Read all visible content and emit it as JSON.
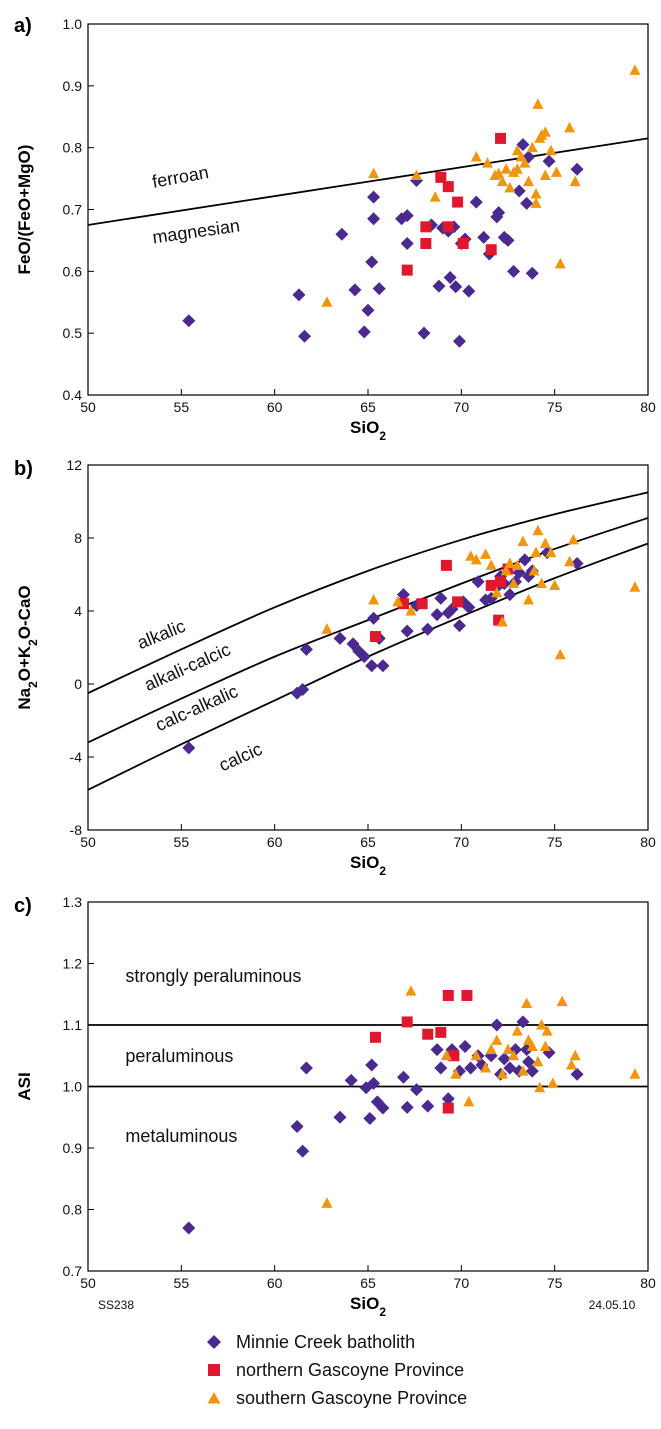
{
  "colors": {
    "minnie": "#4b2a8f",
    "northern": "#e0182d",
    "southern": "#f0960e",
    "axis": "#000000"
  },
  "legend": [
    {
      "key": "minnie",
      "label": "Minnie Creek batholith",
      "shape": "diamond"
    },
    {
      "key": "northern",
      "label": "northern Gascoyne Province",
      "shape": "square"
    },
    {
      "key": "southern",
      "label": "southern Gascoyne Province",
      "shape": "triangle"
    }
  ],
  "footer": {
    "left": "SS238",
    "right": "24.05.10"
  },
  "chart_data": [
    {
      "type": "scatter",
      "panel": "a)",
      "xlabel": "SiO2",
      "ylabel": "FeO/(FeO+MgO)",
      "xlim": [
        50,
        80
      ],
      "ylim": [
        0.4,
        1.0
      ],
      "xticks": [
        50,
        55,
        60,
        65,
        70,
        75,
        80
      ],
      "yticks": [
        0.4,
        0.5,
        0.6,
        0.7,
        0.8,
        0.9,
        1.0
      ],
      "tick_decimals": 1,
      "boundaries": [
        {
          "name": "ferroan-magnesian",
          "x": [
            50,
            80
          ],
          "y": [
            0.675,
            0.815
          ]
        }
      ],
      "field_labels": [
        {
          "text": "ferroan",
          "x": 53.5,
          "y": 0.735,
          "rotate": -10
        },
        {
          "text": "magnesian",
          "x": 53.5,
          "y": 0.645,
          "rotate": -8
        }
      ],
      "series": [
        {
          "name": "Minnie Creek batholith",
          "key": "minnie",
          "x": [
            55.4,
            61.3,
            61.6,
            63.6,
            64.3,
            64.8,
            65,
            65.2,
            65.3,
            65.3,
            65.6,
            66.8,
            67.1,
            67.1,
            67.6,
            68,
            68.4,
            68.8,
            69,
            69.3,
            69.4,
            69.6,
            69.7,
            69.9,
            70,
            70.2,
            70.4,
            70.8,
            71.2,
            71.5,
            71.9,
            72,
            72.3,
            72.5,
            72.8,
            73.1,
            73.3,
            73.5,
            73.6,
            73.8,
            74.7,
            76.2
          ],
          "y": [
            0.52,
            0.562,
            0.495,
            0.66,
            0.57,
            0.502,
            0.537,
            0.615,
            0.685,
            0.72,
            0.572,
            0.685,
            0.645,
            0.69,
            0.747,
            0.5,
            0.675,
            0.576,
            0.67,
            0.665,
            0.59,
            0.672,
            0.575,
            0.487,
            0.645,
            0.652,
            0.568,
            0.712,
            0.655,
            0.628,
            0.688,
            0.695,
            0.655,
            0.65,
            0.6,
            0.73,
            0.805,
            0.71,
            0.785,
            0.597,
            0.778,
            0.765
          ]
        },
        {
          "name": "northern Gascoyne Province",
          "key": "northern",
          "x": [
            67.1,
            68.1,
            68.1,
            68.9,
            69.3,
            69.3,
            69.8,
            70.1,
            71.6,
            72.1
          ],
          "y": [
            0.602,
            0.645,
            0.672,
            0.752,
            0.672,
            0.737,
            0.712,
            0.645,
            0.635,
            0.815
          ]
        },
        {
          "name": "southern Gascoyne Province",
          "key": "southern",
          "x": [
            62.8,
            65.3,
            67.6,
            68.6,
            70.8,
            71.4,
            71.8,
            72,
            72.2,
            72.4,
            72.6,
            72.8,
            73,
            73,
            73.2,
            73.4,
            73.6,
            73.8,
            74,
            74,
            74.1,
            74.2,
            74.3,
            74.5,
            74.5,
            74.8,
            75.1,
            75.3,
            75.8,
            76.1,
            79.3
          ],
          "y": [
            0.55,
            0.758,
            0.755,
            0.72,
            0.785,
            0.775,
            0.755,
            0.758,
            0.745,
            0.765,
            0.735,
            0.76,
            0.765,
            0.795,
            0.785,
            0.775,
            0.745,
            0.8,
            0.71,
            0.725,
            0.87,
            0.815,
            0.82,
            0.755,
            0.825,
            0.795,
            0.76,
            0.612,
            0.832,
            0.745,
            0.925
          ]
        }
      ]
    },
    {
      "type": "scatter",
      "panel": "b)",
      "xlabel": "SiO2",
      "ylabel": "Na2O+K2O-CaO",
      "xlim": [
        50,
        80
      ],
      "ylim": [
        -8,
        12
      ],
      "xticks": [
        50,
        55,
        60,
        65,
        70,
        75,
        80
      ],
      "yticks": [
        -8,
        -4,
        0,
        4,
        8,
        12
      ],
      "tick_decimals": 0,
      "boundaries": [
        {
          "name": "alkalic/alkali-calcic",
          "x": [
            50,
            55,
            60,
            65,
            70,
            75,
            80
          ],
          "y": [
            -0.5,
            1.9,
            4.2,
            6.2,
            7.9,
            9.3,
            10.5
          ]
        },
        {
          "name": "alkali-calcic/calc-alkalic",
          "x": [
            50,
            55,
            60,
            65,
            70,
            75,
            80
          ],
          "y": [
            -3.2,
            -0.8,
            1.5,
            3.5,
            5.5,
            7.4,
            9.1
          ]
        },
        {
          "name": "calc-alkalic/calcic",
          "x": [
            50,
            55,
            60,
            65,
            70,
            75,
            80
          ],
          "y": [
            -5.8,
            -3.3,
            -0.9,
            1.5,
            3.7,
            5.8,
            7.7
          ]
        }
      ],
      "field_labels": [
        {
          "text": "alkalic",
          "x": 52.8,
          "y": 1.9,
          "rotate": -22
        },
        {
          "text": "alkali-calcic",
          "x": 53.2,
          "y": -0.4,
          "rotate": -24
        },
        {
          "text": "calc-alkalic",
          "x": 53.8,
          "y": -2.6,
          "rotate": -24
        },
        {
          "text": "calcic",
          "x": 57.2,
          "y": -4.8,
          "rotate": -24
        }
      ],
      "series": [
        {
          "name": "Minnie Creek batholith",
          "key": "minnie",
          "x": [
            55.4,
            61.2,
            61.5,
            61.7,
            63.5,
            64.2,
            64.5,
            64.8,
            65.2,
            65.3,
            65.6,
            65.8,
            66.9,
            67.1,
            67.6,
            68.2,
            68.7,
            68.9,
            69.3,
            69.5,
            69.9,
            70.1,
            70.4,
            70.9,
            71.3,
            71.6,
            71.9,
            72.1,
            72.3,
            72.6,
            72.9,
            73.1,
            73.4,
            73.6,
            73.8,
            74.6,
            76.2
          ],
          "y": [
            -3.5,
            -0.5,
            -0.3,
            1.9,
            2.5,
            2.2,
            1.8,
            1.5,
            1,
            3.6,
            2.5,
            1,
            4.9,
            2.9,
            4.3,
            3,
            3.8,
            4.7,
            3.9,
            4.1,
            3.2,
            4.5,
            4.2,
            5.6,
            4.6,
            4.7,
            5.3,
            5.9,
            5.5,
            4.9,
            5.6,
            6.1,
            6.8,
            5.9,
            6.2,
            7.2,
            6.6
          ]
        },
        {
          "name": "northern Gascoyne Province",
          "key": "northern",
          "x": [
            65.4,
            66.9,
            67.9,
            69.2,
            69.8,
            71.6,
            72,
            72.1,
            72.5
          ],
          "y": [
            2.6,
            4.4,
            4.4,
            6.5,
            4.5,
            5.4,
            3.5,
            5.6,
            6.3
          ]
        },
        {
          "name": "southern Gascoyne Province",
          "key": "southern",
          "x": [
            62.8,
            65.3,
            66.6,
            67.3,
            70.5,
            70.8,
            71.3,
            71.6,
            71.9,
            72.2,
            72.4,
            72.6,
            72.8,
            73,
            73.3,
            73.6,
            73.9,
            74,
            74.1,
            74.3,
            74.5,
            74.8,
            75,
            75.3,
            75.8,
            76,
            79.3
          ],
          "y": [
            3,
            4.6,
            4.5,
            4,
            7,
            6.8,
            7.1,
            6.5,
            5,
            3.4,
            6.2,
            6.6,
            5.5,
            6.5,
            7.8,
            4.6,
            6.2,
            7.2,
            8.4,
            5.5,
            7.7,
            7.2,
            5.4,
            1.6,
            6.7,
            7.9,
            5.3
          ]
        }
      ]
    },
    {
      "type": "scatter",
      "panel": "c)",
      "xlabel": "SiO2",
      "ylabel": "ASI",
      "xlim": [
        50,
        80
      ],
      "ylim": [
        0.7,
        1.3
      ],
      "xticks": [
        50,
        55,
        60,
        65,
        70,
        75,
        80
      ],
      "yticks": [
        0.7,
        0.8,
        0.9,
        1.0,
        1.1,
        1.2,
        1.3
      ],
      "tick_decimals": 1,
      "boundaries": [
        {
          "name": "ASI 1.1",
          "x": [
            50,
            80
          ],
          "y": [
            1.1,
            1.1
          ]
        },
        {
          "name": "ASI 1.0",
          "x": [
            50,
            80
          ],
          "y": [
            1.0,
            1.0
          ]
        }
      ],
      "field_labels": [
        {
          "text": "strongly peraluminous",
          "x": 52,
          "y": 1.17,
          "rotate": 0
        },
        {
          "text": "peraluminous",
          "x": 52,
          "y": 1.04,
          "rotate": 0
        },
        {
          "text": "metaluminous",
          "x": 52,
          "y": 0.91,
          "rotate": 0
        }
      ],
      "series": [
        {
          "name": "Minnie Creek batholith",
          "key": "minnie",
          "x": [
            55.4,
            61.2,
            61.5,
            61.7,
            63.5,
            64.1,
            64.9,
            65.1,
            65.2,
            65.3,
            65.5,
            65.8,
            66.9,
            67.1,
            67.6,
            68.2,
            68.7,
            68.9,
            69.3,
            69.5,
            69.9,
            70.2,
            70.5,
            70.9,
            71.1,
            71.6,
            71.9,
            72.1,
            72.3,
            72.6,
            72.9,
            73.1,
            73.3,
            73.5,
            73.6,
            73.8,
            74.7,
            76.2
          ],
          "y": [
            0.77,
            0.935,
            0.895,
            1.03,
            0.95,
            1.01,
            0.998,
            0.948,
            1.035,
            1.005,
            0.975,
            0.965,
            1.015,
            0.966,
            0.995,
            0.968,
            1.06,
            1.03,
            0.98,
            1.06,
            1.025,
            1.065,
            1.03,
            1.05,
            1.035,
            1.05,
            1.1,
            1.02,
            1.045,
            1.03,
            1.06,
            1.025,
            1.105,
            1.06,
            1.04,
            1.025,
            1.055,
            1.02
          ]
        },
        {
          "name": "northern Gascoyne Province",
          "key": "northern",
          "x": [
            65.4,
            67.1,
            68.2,
            68.9,
            69.3,
            69.3,
            69.6,
            70.3
          ],
          "y": [
            1.08,
            1.105,
            1.085,
            1.088,
            1.148,
            0.965,
            1.05,
            1.148
          ]
        },
        {
          "name": "southern Gascoyne Province",
          "key": "southern",
          "x": [
            62.8,
            67.3,
            69.2,
            69.7,
            70.4,
            70.8,
            71.3,
            71.6,
            71.9,
            72.2,
            72.5,
            72.8,
            73,
            73.3,
            73.5,
            73.6,
            73.8,
            74.1,
            74.2,
            74.3,
            74.5,
            74.6,
            74.9,
            75.4,
            75.9,
            76.1,
            79.3
          ],
          "y": [
            0.81,
            1.155,
            1.05,
            1.02,
            0.975,
            1.05,
            1.03,
            1.06,
            1.075,
            1.02,
            1.06,
            1.05,
            1.09,
            1.025,
            1.135,
            1.075,
            1.065,
            1.04,
            0.998,
            1.1,
            1.065,
            1.09,
            1.005,
            1.138,
            1.035,
            1.05,
            1.02
          ]
        }
      ]
    }
  ]
}
